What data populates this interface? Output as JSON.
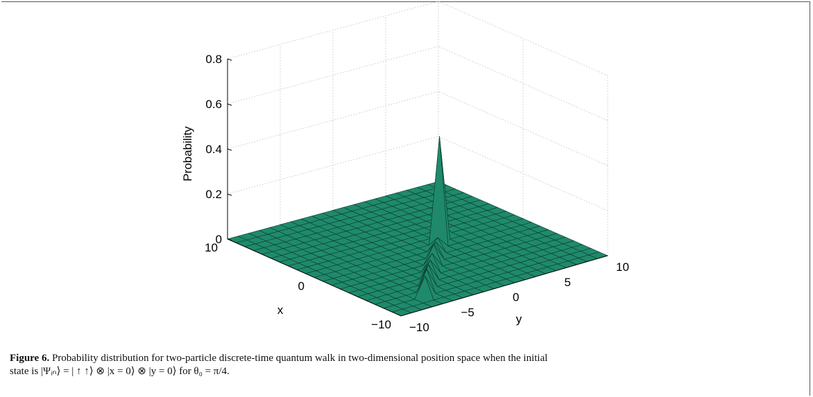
{
  "chart_data": {
    "type": "surface",
    "zlabel": "Probability",
    "xlabel": "x",
    "ylabel": "y",
    "zlim": [
      0,
      0.8
    ],
    "z_ticks": [
      "0",
      "0.2",
      "0.4",
      "0.6",
      "0.8"
    ],
    "x_ticks": [
      "10",
      "0",
      "−10"
    ],
    "y_ticks": [
      "−10",
      "−5",
      "0",
      "5",
      "10"
    ],
    "grid": true,
    "surface_color": "#1f8a6b",
    "grid_range": [
      -10,
      10
    ],
    "grid_step": 1,
    "peaks": [
      {
        "x": -8,
        "y": -6,
        "z": 0.09
      },
      {
        "x": -7,
        "y": -5,
        "z": 0.09
      },
      {
        "x": -6,
        "y": -4,
        "z": 0.08
      },
      {
        "x": -5,
        "y": -3,
        "z": 0.07
      },
      {
        "x": -4,
        "y": -2,
        "z": 0.07
      },
      {
        "x": -3,
        "y": -1,
        "z": 0.08
      },
      {
        "x": -2,
        "y": 0,
        "z": 0.06
      },
      {
        "x": -1,
        "y": 1,
        "z": 0.05
      },
      {
        "x": 0,
        "y": 2,
        "z": 0.47
      },
      {
        "x": 1,
        "y": 3,
        "z": 0.05
      }
    ]
  },
  "caption": {
    "label": "Figure 6.",
    "text_line1": " Probability distribution for two-particle discrete-time quantum walk in two-dimensional position space when the initial",
    "text_line2": "state is |Ψᵢₙ⟩ = | ↑ ↑⟩ ⊗ |x = 0⟩ ⊗ |y = 0⟩ for θ₀ = π/4."
  }
}
